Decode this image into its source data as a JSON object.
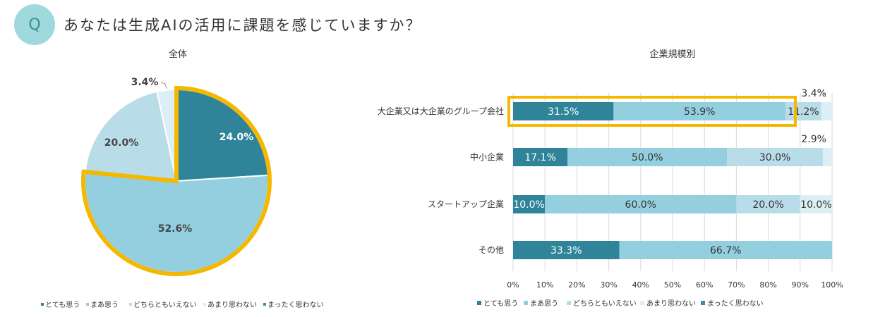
{
  "question": {
    "badge": "Q",
    "text": "あなたは生成AIの活用に課題を感じていますか？"
  },
  "colors": {
    "badge_bg": "#9fd9de",
    "highlight": "#f5b800",
    "very_agree": "#2f8499",
    "agree": "#94cfe0",
    "neutral": "#b9dde8",
    "disagree": "#dbeff5",
    "strongly_disagree": "#3a8fa6"
  },
  "chart_data": [
    {
      "type": "pie",
      "title": "全体",
      "categories": [
        "とても思う",
        "まあ思う",
        "どちらともいえない",
        "あまり思わない",
        "まったく思わない"
      ],
      "values": [
        24.0,
        52.6,
        20.0,
        3.4,
        0
      ],
      "labels": [
        "24.0%",
        "52.6%",
        "20.0%",
        "3.4%",
        ""
      ],
      "highlighted": [
        "とても思う",
        "まあ思う"
      ],
      "legend_position": "bottom"
    },
    {
      "type": "bar",
      "orientation": "horizontal",
      "stacked": true,
      "percent": true,
      "title": "企業規模別",
      "categories": [
        "大企業又は大企業のグループ会社",
        "中小企業",
        "スタートアップ企業",
        "その他"
      ],
      "series": [
        {
          "name": "とても思う",
          "values": [
            31.5,
            17.1,
            10.0,
            33.3
          ],
          "labels": [
            "31.5%",
            "17.1%",
            "10.0%",
            "33.3%"
          ]
        },
        {
          "name": "まあ思う",
          "values": [
            53.9,
            50.0,
            60.0,
            66.7
          ],
          "labels": [
            "53.9%",
            "50.0%",
            "60.0%",
            "66.7%"
          ]
        },
        {
          "name": "どちらともいえない",
          "values": [
            11.2,
            30.0,
            20.0,
            0
          ],
          "labels": [
            "11.2%",
            "30.0%",
            "20.0%",
            ""
          ]
        },
        {
          "name": "あまり思わない",
          "values": [
            3.4,
            2.9,
            10.0,
            0
          ],
          "labels": [
            "3.4%",
            "2.9%",
            "10.0%",
            ""
          ]
        },
        {
          "name": "まったく思わない",
          "values": [
            0,
            0,
            0,
            0
          ],
          "labels": [
            "",
            "",
            "",
            ""
          ]
        }
      ],
      "xlim": [
        0,
        100
      ],
      "xticks": [
        "0%",
        "10%",
        "20%",
        "30%",
        "40%",
        "50%",
        "60%",
        "70%",
        "80%",
        "90%",
        "100%"
      ],
      "grid": true,
      "highlighted_category": "大企業又は大企業のグループ会社",
      "legend_position": "bottom"
    }
  ]
}
